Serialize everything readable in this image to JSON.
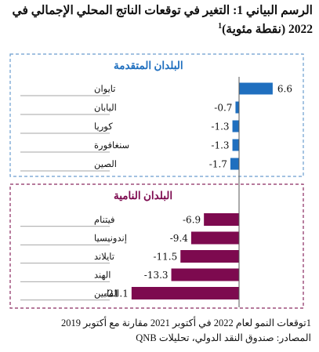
{
  "title": {
    "line1": "الرسم البياني 1: التغير في توقعات الناتج المحلي الإجمالي في",
    "line2": "2022 (نقطة مئوية)",
    "superscript": "1"
  },
  "chart_data": {
    "type": "bar",
    "orientation": "horizontal",
    "groups": [
      {
        "label": "البلدان المتقدمة",
        "color": "#1f6fbf",
        "border_color": "#6a9ccf",
        "categories": [
          "تايوان",
          "اليابان",
          "كوريا",
          "سنغافورة",
          "الصين"
        ],
        "values": [
          6.6,
          -0.7,
          -1.3,
          -1.3,
          -1.7
        ],
        "value_labels": [
          "6.6",
          "-0.7",
          "-1.3",
          "-1.3",
          "-1.7"
        ]
      },
      {
        "label": "البلدان النامية",
        "color": "#7d0a4f",
        "border_color": "#8a2a60",
        "categories": [
          "فيتنام",
          "إندونيسيا",
          "تايلاند",
          "الهند",
          "الفلبين"
        ],
        "values": [
          -6.9,
          -9.4,
          -11.5,
          -13.3,
          -21.1
        ],
        "value_labels": [
          "-6.9",
          "-9.4",
          "-11.5",
          "-13.3",
          "-21.1"
        ]
      }
    ],
    "xlim": [
      -22,
      8
    ],
    "grid": false,
    "legend": "none"
  },
  "footnotes": {
    "note": "1توقعات النمو لعام 2022 في أكتوبر 2021 مقارنة مع أكتوبر 2019",
    "source": "المصادر: صندوق النقد الدولي، تحليلات QNB"
  }
}
